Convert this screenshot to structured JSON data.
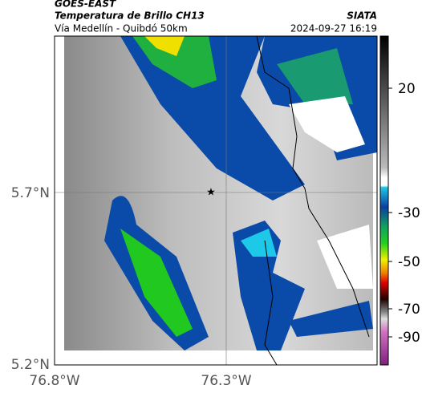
{
  "header": {
    "source": "GOES-EAST",
    "title": "Temperatura de Brillo CH13",
    "brand": "SIATA",
    "route": "Vía Medellín - Quibdó 50km",
    "timestamp": "2024-09-27 16:19"
  },
  "map": {
    "lat_labels": [
      "5.7°N",
      "5.2°N"
    ],
    "lon_labels": [
      "76.8°W",
      "76.3°W"
    ]
  },
  "colorbar": {
    "tick_labels": [
      "20",
      "-30",
      "-50",
      "-70",
      "-90"
    ]
  }
}
